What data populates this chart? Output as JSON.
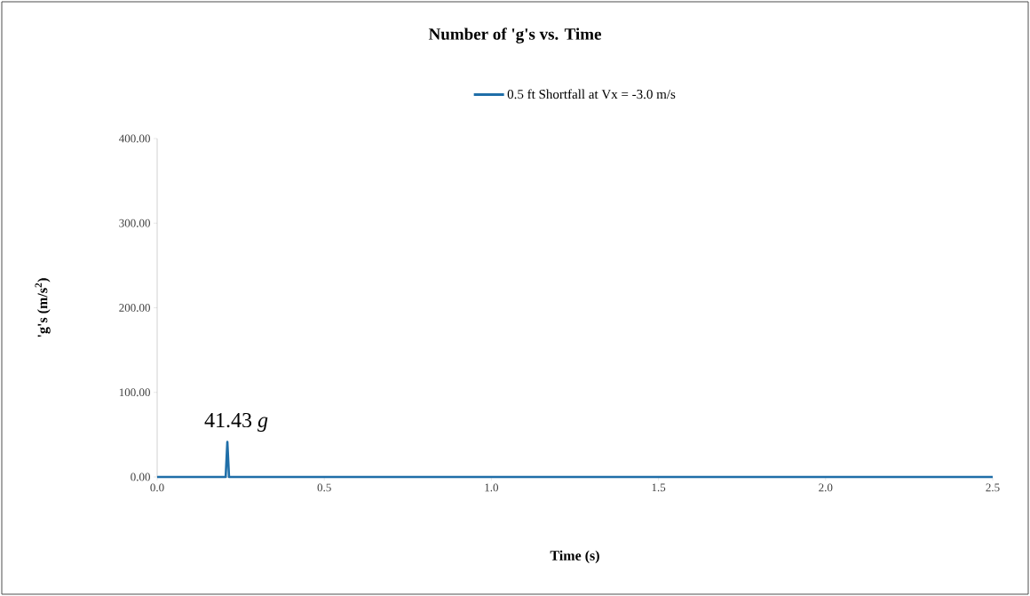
{
  "chart_data": {
    "type": "line",
    "title": "Number of 'g's vs. Time",
    "xlabel": "Time (s)",
    "ylabel": "'g's (m/s$^{2}$)",
    "x": [
      0,
      0.205,
      0.21,
      0.215,
      2.5
    ],
    "series": [
      {
        "name": "0.5 ft Shortfall at Vx = -3.0 m/s",
        "color": "#1f6ea8",
        "values": [
          0,
          0,
          41.43,
          0,
          0
        ]
      }
    ],
    "xlim": [
      0,
      2.5
    ],
    "ylim": [
      0,
      400
    ],
    "xticks": [
      {
        "value": 0,
        "label": "0.0"
      },
      {
        "value": 0.5,
        "label": "0.5"
      },
      {
        "value": 1,
        "label": "1.0"
      },
      {
        "value": 1.5,
        "label": "1.5"
      },
      {
        "value": 2,
        "label": "2.0"
      },
      {
        "value": 2.5,
        "label": "2.5"
      }
    ],
    "yticks": [
      {
        "value": 0,
        "label": "0.00"
      },
      {
        "value": 100,
        "label": "100.00"
      },
      {
        "value": 200,
        "label": "200.00"
      },
      {
        "value": 300,
        "label": "300.00"
      },
      {
        "value": 400,
        "label": "400.00"
      }
    ],
    "annotations": [
      {
        "text": "41.43 *g*",
        "x": 0.21,
        "y": 41.43
      }
    ],
    "legend": "top",
    "grid": false,
    "marker": "none",
    "line_style": "solid"
  }
}
